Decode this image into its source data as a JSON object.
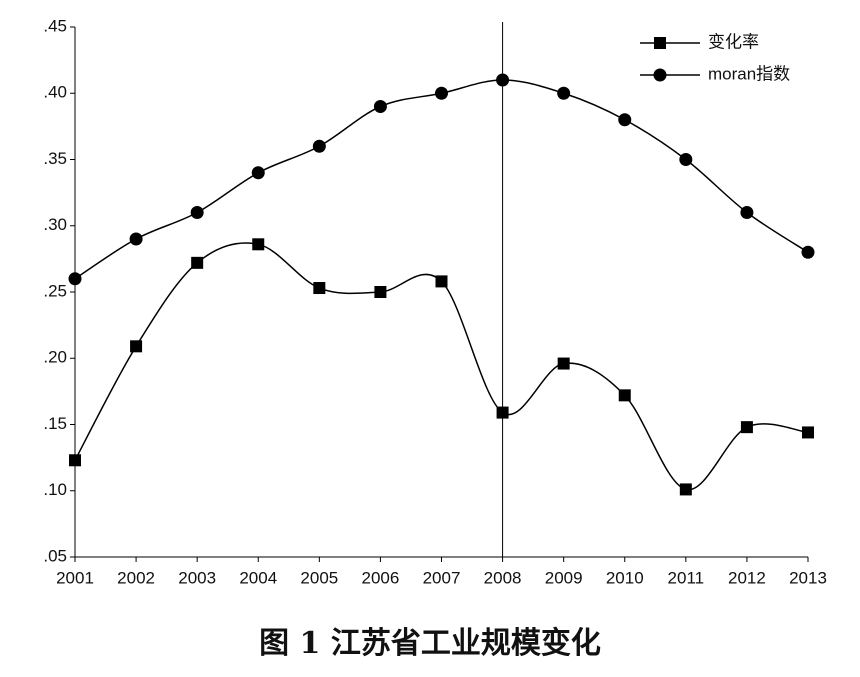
{
  "chart_data": {
    "type": "line",
    "caption": "图 1   江苏省工业规模变化",
    "categories": [
      "2001",
      "2002",
      "2003",
      "2004",
      "2005",
      "2006",
      "2007",
      "2008",
      "2009",
      "2010",
      "2011",
      "2012",
      "2013"
    ],
    "series": [
      {
        "name": "变化率",
        "color": "#000000",
        "marker": "square",
        "values": [
          0.123,
          0.209,
          0.272,
          0.286,
          0.253,
          0.25,
          0.258,
          0.159,
          0.196,
          0.172,
          0.101,
          0.148,
          0.144
        ]
      },
      {
        "name": "moran指数",
        "color": "#000000",
        "marker": "circle",
        "values": [
          0.26,
          0.29,
          0.31,
          0.34,
          0.36,
          0.39,
          0.4,
          0.41,
          0.4,
          0.38,
          0.35,
          0.31,
          0.28
        ]
      }
    ],
    "ylim": [
      0.05,
      0.45
    ],
    "yticks": [
      {
        "value": 0.05,
        "label": ".05"
      },
      {
        "value": 0.1,
        "label": ".10"
      },
      {
        "value": 0.15,
        "label": ".15"
      },
      {
        "value": 0.2,
        "label": ".20"
      },
      {
        "value": 0.25,
        "label": ".25"
      },
      {
        "value": 0.3,
        "label": ".30"
      },
      {
        "value": 0.35,
        "label": ".35"
      },
      {
        "value": 0.4,
        "label": ".40"
      },
      {
        "value": 0.45,
        "label": ".45"
      }
    ],
    "reference_line": "2008",
    "legend": "top-right",
    "grid": false
  }
}
